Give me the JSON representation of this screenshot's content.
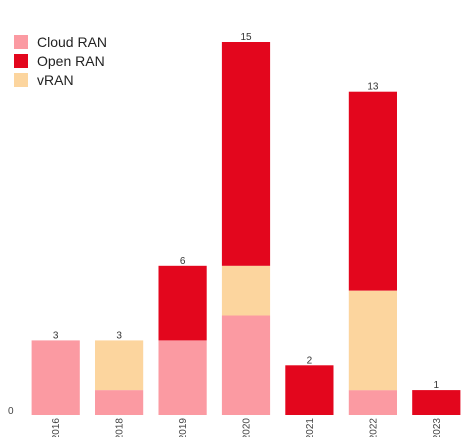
{
  "chart_data": {
    "type": "bar",
    "stacked": true,
    "title": "",
    "xlabel": "",
    "ylabel": "",
    "categories": [
      "2016",
      "2018",
      "2019",
      "2020",
      "2021",
      "2022",
      "2023"
    ],
    "series": [
      {
        "name": "Cloud RAN",
        "values": [
          3,
          1,
          3,
          4,
          0,
          1,
          0
        ],
        "color": "#fb9aa2"
      },
      {
        "name": "vRAN",
        "values": [
          0,
          2,
          0,
          2,
          0,
          4,
          0
        ],
        "color": "#fcd59e"
      },
      {
        "name": "Open RAN",
        "values": [
          0,
          0,
          3,
          9,
          2,
          8,
          1
        ],
        "color": "#e3061d"
      }
    ],
    "totals": [
      3,
      3,
      6,
      15,
      2,
      13,
      1
    ],
    "y_tick_labels": [
      "0"
    ],
    "ylim": [
      0,
      15
    ],
    "grid": false,
    "legend_position": "top-left",
    "legend_order": [
      "Cloud RAN",
      "Open RAN",
      "vRAN"
    ],
    "x_tick_rotation": "vertical"
  }
}
